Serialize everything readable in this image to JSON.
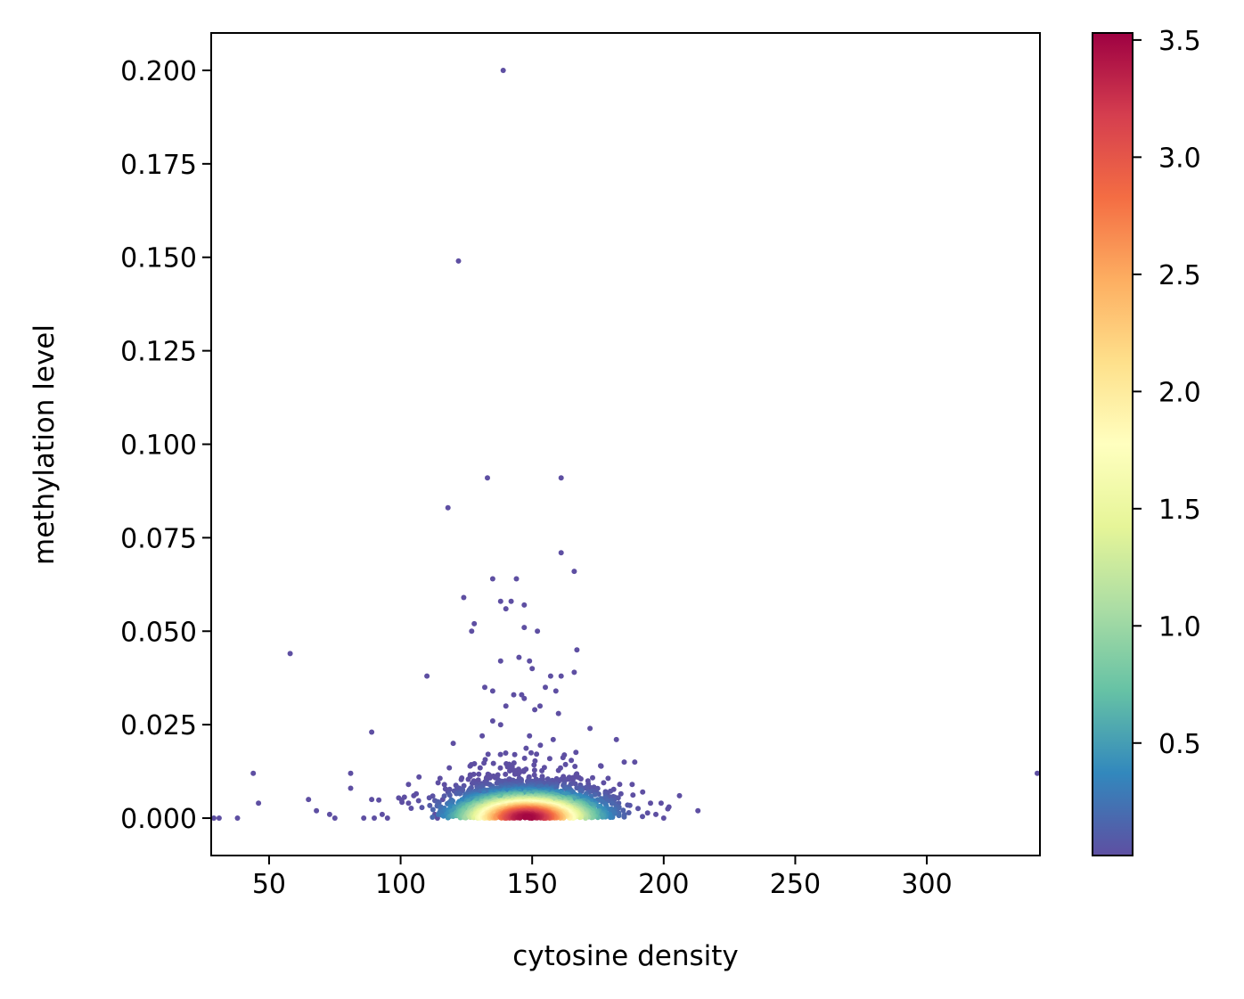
{
  "chart_data": {
    "type": "scatter",
    "title": "",
    "xlabel": "cytosine density",
    "ylabel": "methylation level",
    "xlim": [
      28,
      343
    ],
    "ylim": [
      -0.01,
      0.21
    ],
    "xticks": [
      50,
      100,
      150,
      200,
      250,
      300
    ],
    "xtick_labels": [
      "50",
      "100",
      "150",
      "200",
      "250",
      "300"
    ],
    "yticks": [
      0.0,
      0.025,
      0.05,
      0.075,
      0.1,
      0.125,
      0.15,
      0.175,
      0.2
    ],
    "ytick_labels": [
      "0.000",
      "0.025",
      "0.050",
      "0.075",
      "0.100",
      "0.125",
      "0.150",
      "0.175",
      "0.200"
    ],
    "grid": false,
    "colormap": "Spectral_r",
    "colormap_stops": [
      "#5e4fa2",
      "#3288bd",
      "#66c2a5",
      "#abdda4",
      "#e6f598",
      "#ffffbf",
      "#fee08b",
      "#fdae61",
      "#f46d43",
      "#d53e4f",
      "#9e0142"
    ],
    "colorbar": {
      "range": [
        0.02,
        3.53
      ],
      "ticks": [
        0.5,
        1.0,
        1.5,
        2.0,
        2.5,
        3.0,
        3.5
      ],
      "tick_labels": [
        "0.5",
        "1.0",
        "1.5",
        "2.0",
        "2.5",
        "3.0",
        "3.5"
      ]
    },
    "core": {
      "center_x": 148,
      "spread_x": 14,
      "spread_y": 0.0045,
      "peak_density": 3.5
    },
    "outliers": [
      [
        139,
        0.2
      ],
      [
        122,
        0.149
      ],
      [
        133,
        0.091
      ],
      [
        161,
        0.091
      ],
      [
        118,
        0.083
      ],
      [
        161,
        0.071
      ],
      [
        166,
        0.066
      ],
      [
        135,
        0.064
      ],
      [
        144,
        0.064
      ],
      [
        124,
        0.059
      ],
      [
        138,
        0.058
      ],
      [
        142,
        0.058
      ],
      [
        140,
        0.056
      ],
      [
        147,
        0.057
      ],
      [
        128,
        0.052
      ],
      [
        127,
        0.05
      ],
      [
        147,
        0.051
      ],
      [
        152,
        0.05
      ],
      [
        167,
        0.045
      ],
      [
        58,
        0.044
      ],
      [
        138,
        0.042
      ],
      [
        149,
        0.042
      ],
      [
        150,
        0.04
      ],
      [
        145,
        0.043
      ],
      [
        157,
        0.038
      ],
      [
        161,
        0.038
      ],
      [
        166,
        0.039
      ],
      [
        110,
        0.038
      ],
      [
        132,
        0.035
      ],
      [
        135,
        0.034
      ],
      [
        143,
        0.033
      ],
      [
        146,
        0.033
      ],
      [
        147,
        0.032
      ],
      [
        155,
        0.035
      ],
      [
        159,
        0.034
      ],
      [
        140,
        0.03
      ],
      [
        151,
        0.029
      ],
      [
        153,
        0.03
      ],
      [
        160,
        0.028
      ],
      [
        135,
        0.026
      ],
      [
        89,
        0.023
      ],
      [
        120,
        0.02
      ],
      [
        138,
        0.025
      ],
      [
        149,
        0.022
      ],
      [
        172,
        0.024
      ],
      [
        182,
        0.021
      ],
      [
        131,
        0.022
      ],
      [
        158,
        0.021
      ],
      [
        44,
        0.012
      ],
      [
        46,
        0.004
      ],
      [
        65,
        0.005
      ],
      [
        68,
        0.002
      ],
      [
        73,
        0.001
      ],
      [
        75,
        0.0
      ],
      [
        81,
        0.012
      ],
      [
        81,
        0.008
      ],
      [
        86,
        0.0
      ],
      [
        89,
        0.005
      ],
      [
        90,
        0.0
      ],
      [
        93,
        0.001
      ],
      [
        95,
        0.0
      ],
      [
        103,
        0.009
      ],
      [
        103,
        0.004
      ],
      [
        105,
        0.006
      ],
      [
        107,
        0.011
      ],
      [
        113,
        0.001
      ],
      [
        114,
        0.0
      ],
      [
        116,
        0.005
      ],
      [
        118,
        0.007
      ],
      [
        176,
        0.014
      ],
      [
        185,
        0.015
      ],
      [
        188,
        0.009
      ],
      [
        189,
        0.015
      ],
      [
        192,
        0.007
      ],
      [
        195,
        0.004
      ],
      [
        199,
        0.004
      ],
      [
        202,
        0.003
      ],
      [
        206,
        0.006
      ],
      [
        213,
        0.002
      ],
      [
        29,
        0.0
      ],
      [
        31,
        0.0
      ],
      [
        38,
        0.0
      ],
      [
        342,
        0.012
      ],
      [
        197,
        0.001
      ],
      [
        200,
        0.0
      ]
    ]
  }
}
